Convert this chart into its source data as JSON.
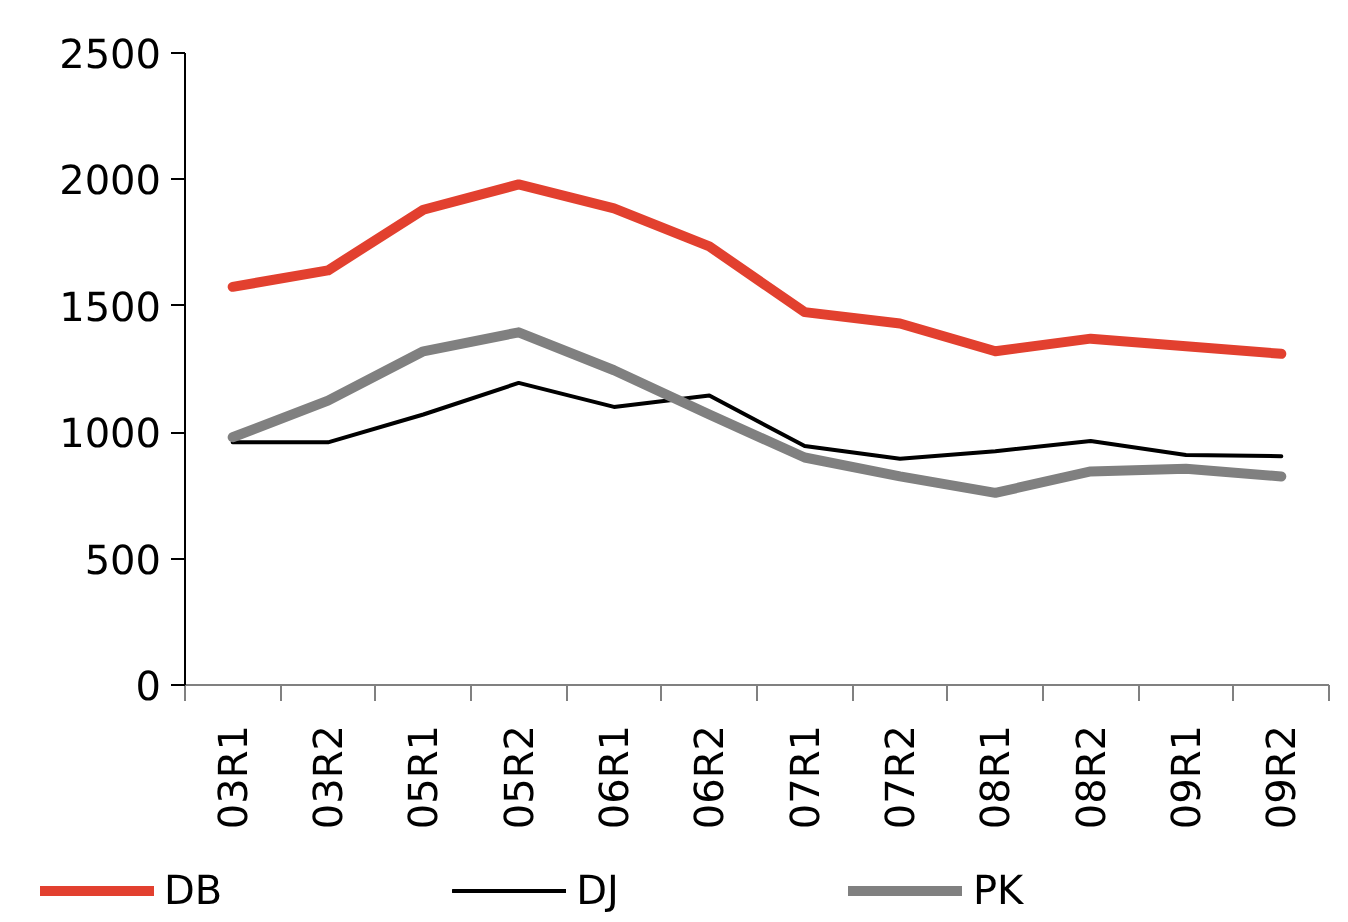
{
  "chart_data": {
    "type": "line",
    "categories": [
      "03R1",
      "03R2",
      "05R1",
      "05R2",
      "06R1",
      "06R2",
      "07R1",
      "07R2",
      "08R1",
      "08R2",
      "09R1",
      "09R2"
    ],
    "series": [
      {
        "name": "DB",
        "color": "#e2402f",
        "values": [
          1575,
          1640,
          1880,
          1980,
          1885,
          1735,
          1475,
          1430,
          1320,
          1370,
          1340,
          1310
        ]
      },
      {
        "name": "DJ",
        "color": "#000000",
        "values": [
          960,
          960,
          1070,
          1195,
          1100,
          1145,
          945,
          895,
          925,
          965,
          910,
          905
        ]
      },
      {
        "name": "PK",
        "color": "#808080",
        "values": [
          980,
          1125,
          1320,
          1395,
          1245,
          1070,
          900,
          825,
          760,
          845,
          855,
          825
        ]
      }
    ],
    "ylim": [
      0,
      2500
    ],
    "yticks": [
      0,
      500,
      1000,
      1500,
      2000,
      2500
    ],
    "legend": "bottom"
  }
}
